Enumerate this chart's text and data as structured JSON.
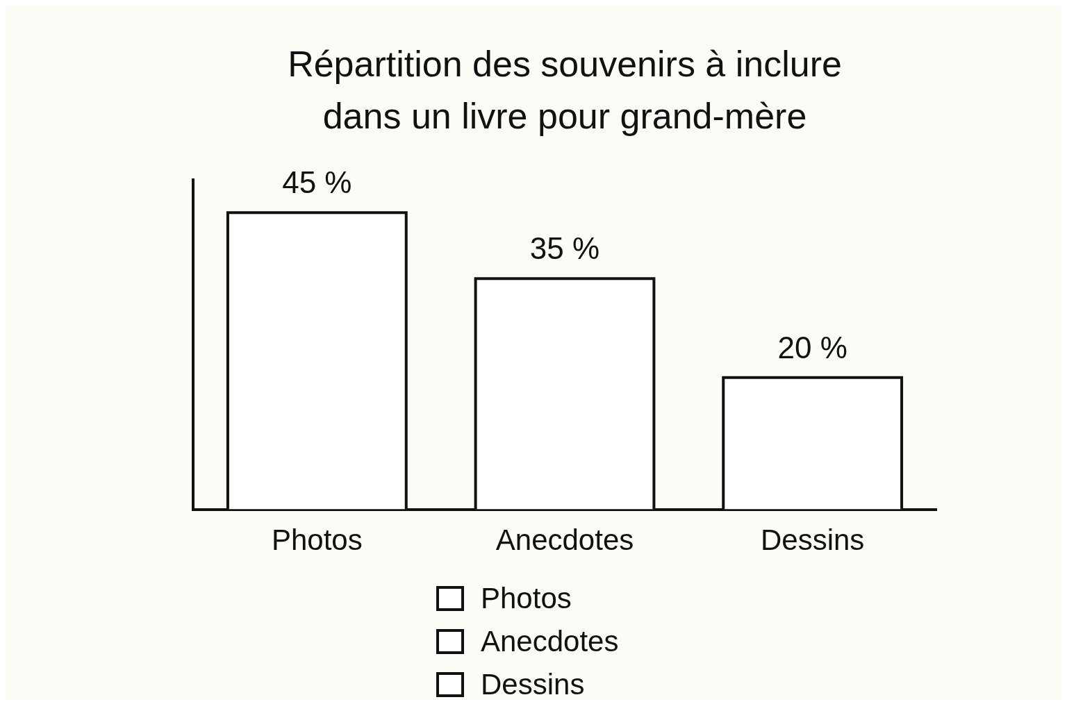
{
  "chart_data": {
    "type": "bar",
    "title": "Répartition des souvenirs à inclure\ndans un livre pour grand-mère",
    "categories": [
      "Photos",
      "Anecdotes",
      "Dessins"
    ],
    "values": [
      45,
      35,
      20
    ],
    "value_labels": [
      "45 %",
      "35 %",
      "20 %"
    ],
    "colors": [
      "#ffffff",
      "#ffffff",
      "#ffffff"
    ],
    "tick_labels": "x",
    "grid": false
  }
}
